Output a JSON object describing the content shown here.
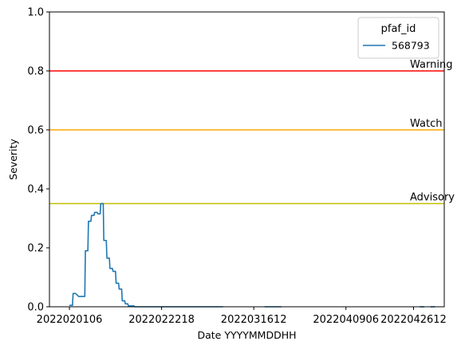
{
  "chart_data": {
    "type": "line",
    "title": "",
    "xlabel": "Date YYYYMMDDHH",
    "ylabel": "Severity",
    "ylim": [
      0,
      1.0
    ],
    "xlim": [
      -6.5,
      122
    ],
    "yticks": [
      0.0,
      0.2,
      0.4,
      0.6,
      0.8,
      1.0
    ],
    "ytick_labels": [
      "0.0",
      "0.2",
      "0.4",
      "0.6",
      "0.8",
      "1.0"
    ],
    "xticks": [
      {
        "pos": 0,
        "label": "2022020106"
      },
      {
        "pos": 30,
        "label": "2022022218"
      },
      {
        "pos": 60,
        "label": "2022031612"
      },
      {
        "pos": 90,
        "label": "2022040906"
      },
      {
        "pos": 112,
        "label": "2022042612"
      }
    ],
    "thresholds": [
      {
        "name": "Warning",
        "value": 0.8,
        "color": "#ff0000"
      },
      {
        "name": "Watch",
        "value": 0.6,
        "color": "#ffa500"
      },
      {
        "name": "Advisory",
        "value": 0.35,
        "color": "#bfbf00"
      }
    ],
    "legend": {
      "title": "pfaf_id",
      "placement": "top-right"
    },
    "series": [
      {
        "name": "568793",
        "color": "#1f77b4",
        "segments": [
          [
            [
              0,
              0.005
            ],
            [
              1,
              0.005
            ],
            [
              1.2,
              0.045
            ],
            [
              2,
              0.045
            ],
            [
              2.5,
              0.04
            ],
            [
              3,
              0.035
            ],
            [
              4,
              0.035
            ],
            [
              5,
              0.035
            ],
            [
              5.2,
              0.19
            ],
            [
              6,
              0.19
            ],
            [
              6.2,
              0.29
            ],
            [
              7,
              0.29
            ],
            [
              7.2,
              0.31
            ],
            [
              8,
              0.31
            ],
            [
              8.2,
              0.32
            ],
            [
              9,
              0.32
            ],
            [
              9.3,
              0.315
            ],
            [
              10,
              0.315
            ],
            [
              10.2,
              0.35
            ],
            [
              11,
              0.35
            ],
            [
              11.2,
              0.225
            ],
            [
              12,
              0.225
            ],
            [
              12.2,
              0.165
            ],
            [
              13,
              0.165
            ],
            [
              13.2,
              0.13
            ],
            [
              14,
              0.13
            ],
            [
              14.2,
              0.12
            ],
            [
              15,
              0.12
            ],
            [
              15.2,
              0.08
            ],
            [
              16,
              0.08
            ],
            [
              16.2,
              0.06
            ],
            [
              17,
              0.06
            ],
            [
              17.2,
              0.02
            ],
            [
              18,
              0.02
            ],
            [
              18.2,
              0.01
            ],
            [
              19,
              0.01
            ],
            [
              19.2,
              0.003
            ],
            [
              20,
              0.003
            ],
            [
              21,
              0.003
            ],
            [
              21.2,
              0.0
            ],
            [
              50,
              0.0
            ]
          ],
          [
            [
              63.5,
              0.0
            ],
            [
              69,
              0.0
            ]
          ],
          [
            [
              114,
              0.0
            ],
            [
              115.5,
              0.0
            ]
          ],
          [
            [
              117.5,
              0.0
            ],
            [
              119,
              0.0
            ]
          ]
        ]
      }
    ]
  }
}
